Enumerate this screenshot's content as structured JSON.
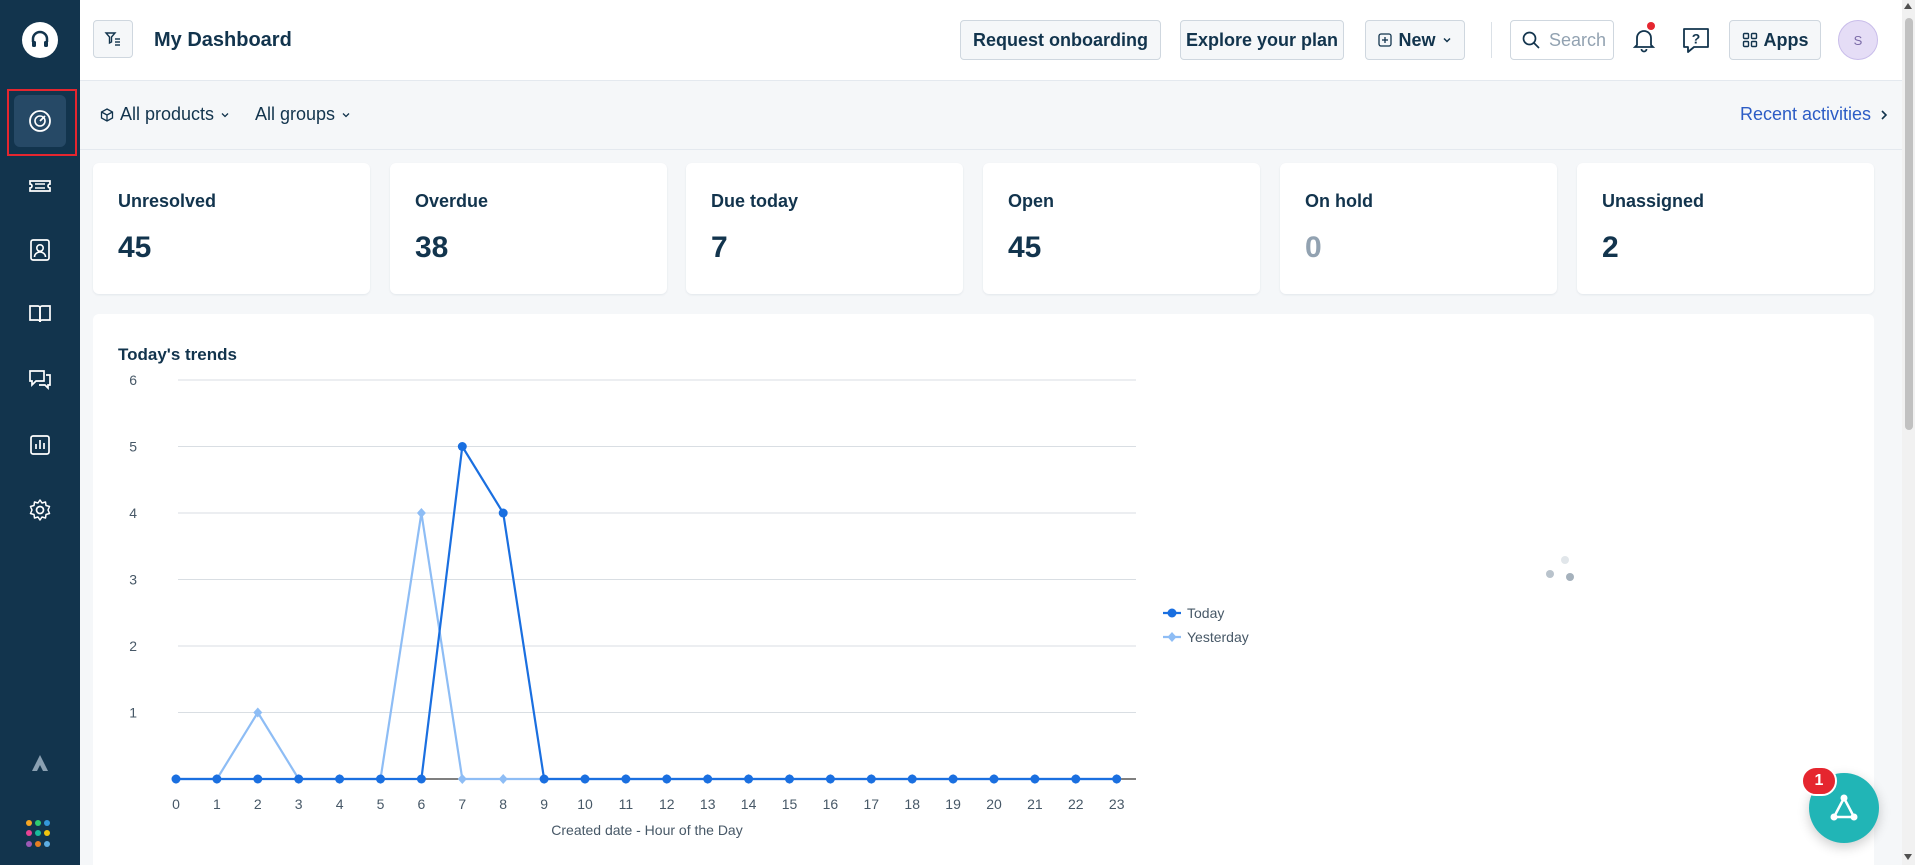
{
  "header": {
    "title": "My Dashboard",
    "request_onboarding": "Request onboarding",
    "explore_plan": "Explore your plan",
    "new_label": "New",
    "search_placeholder": "Search",
    "apps_label": "Apps",
    "avatar_initial": "S"
  },
  "filters": {
    "products": "All products",
    "groups": "All groups",
    "recent_activities": "Recent activities"
  },
  "cards": [
    {
      "label": "Unresolved",
      "value": "45"
    },
    {
      "label": "Overdue",
      "value": "38"
    },
    {
      "label": "Due today",
      "value": "7"
    },
    {
      "label": "Open",
      "value": "45"
    },
    {
      "label": "On hold",
      "value": "0"
    },
    {
      "label": "Unassigned",
      "value": "2"
    }
  ],
  "trends": {
    "title": "Today's trends"
  },
  "widget": {
    "badge": "1"
  },
  "colors": {
    "sidebar": "#12344d",
    "today": "#1a6fe0",
    "yesterday": "#8ebdf5",
    "accent_link": "#2c5cc5",
    "widget": "#21b5b6",
    "badge": "#e5262f"
  },
  "chart_data": {
    "type": "line",
    "title": "Today's trends",
    "xlabel": "Created date - Hour of the Day",
    "ylabel": "",
    "x": [
      0,
      1,
      2,
      3,
      4,
      5,
      6,
      7,
      8,
      9,
      10,
      11,
      12,
      13,
      14,
      15,
      16,
      17,
      18,
      19,
      20,
      21,
      22,
      23
    ],
    "ylim": [
      0,
      6
    ],
    "yticks": [
      1,
      2,
      3,
      4,
      5,
      6
    ],
    "grid": true,
    "legend_position": "right",
    "series": [
      {
        "name": "Today",
        "color": "#1a6fe0",
        "marker": "circle",
        "values": [
          0,
          0,
          0,
          0,
          0,
          0,
          0,
          5,
          4,
          0,
          0,
          0,
          0,
          0,
          0,
          0,
          0,
          0,
          0,
          0,
          0,
          0,
          0,
          0
        ]
      },
      {
        "name": "Yesterday",
        "color": "#8ebdf5",
        "marker": "diamond",
        "values": [
          0,
          0,
          1,
          0,
          0,
          0,
          4,
          0,
          0,
          0,
          0,
          0,
          0,
          0,
          0,
          0,
          0,
          0,
          0,
          0,
          0,
          0,
          0,
          0
        ]
      }
    ]
  }
}
